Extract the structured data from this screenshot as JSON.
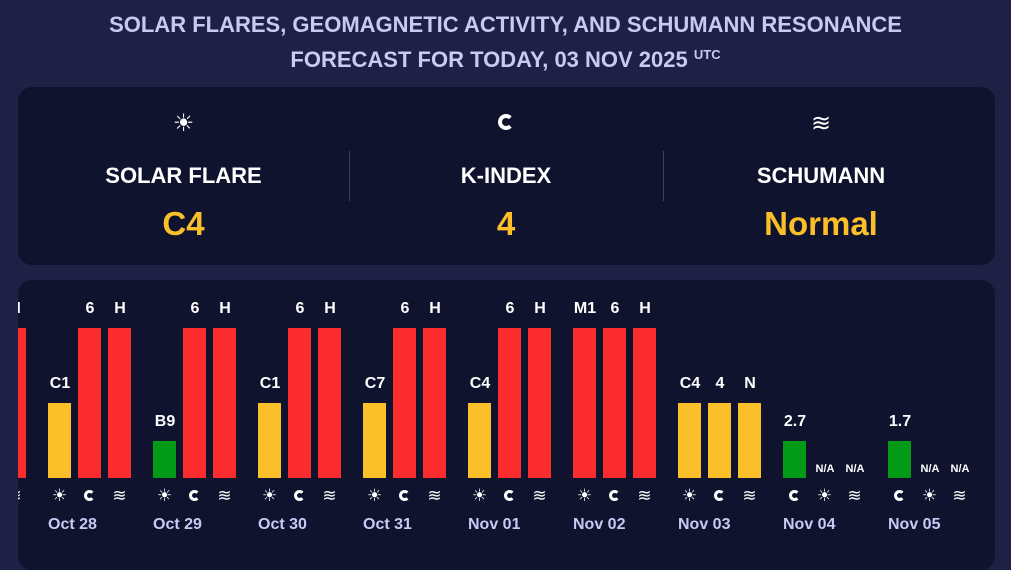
{
  "title": {
    "line1": "SOLAR FLARES, GEOMAGNETIC ACTIVITY, AND SCHUMANN RESONANCE",
    "line2": "FORECAST FOR TODAY, 03 NOV 2025",
    "sup": "UTC"
  },
  "today": [
    {
      "icon": "sun-icon",
      "label": "SOLAR FLARE",
      "value": "C4"
    },
    {
      "icon": "magnet-icon",
      "label": "K-INDEX",
      "value": "4"
    },
    {
      "icon": "waves-icon",
      "label": "SCHUMANN",
      "value": "Normal"
    }
  ],
  "colors": {
    "high": "#fb2c2e",
    "medium": "#fbbf2a",
    "low": "#029a16",
    "accent": "#fbbf2a"
  },
  "days": [
    {
      "date": "",
      "bars": [
        {
          "type": "flare",
          "label": "",
          "level": "high"
        },
        {
          "type": "k",
          "label": "",
          "level": "high"
        },
        {
          "type": "schumann",
          "label": "H",
          "level": "high"
        }
      ]
    },
    {
      "date": "Oct 28",
      "bars": [
        {
          "type": "flare",
          "label": "C1",
          "level": "medium"
        },
        {
          "type": "k",
          "label": "6",
          "level": "high"
        },
        {
          "type": "schumann",
          "label": "H",
          "level": "high"
        }
      ]
    },
    {
      "date": "Oct 29",
      "bars": [
        {
          "type": "flare",
          "label": "B9",
          "level": "low"
        },
        {
          "type": "k",
          "label": "6",
          "level": "high"
        },
        {
          "type": "schumann",
          "label": "H",
          "level": "high"
        }
      ]
    },
    {
      "date": "Oct 30",
      "bars": [
        {
          "type": "flare",
          "label": "C1",
          "level": "medium"
        },
        {
          "type": "k",
          "label": "6",
          "level": "high"
        },
        {
          "type": "schumann",
          "label": "H",
          "level": "high"
        }
      ]
    },
    {
      "date": "Oct 31",
      "bars": [
        {
          "type": "flare",
          "label": "C7",
          "level": "medium"
        },
        {
          "type": "k",
          "label": "6",
          "level": "high"
        },
        {
          "type": "schumann",
          "label": "H",
          "level": "high"
        }
      ]
    },
    {
      "date": "Nov 01",
      "bars": [
        {
          "type": "flare",
          "label": "C4",
          "level": "medium"
        },
        {
          "type": "k",
          "label": "6",
          "level": "high"
        },
        {
          "type": "schumann",
          "label": "H",
          "level": "high"
        }
      ]
    },
    {
      "date": "Nov 02",
      "bars": [
        {
          "type": "flare",
          "label": "M1",
          "level": "high"
        },
        {
          "type": "k",
          "label": "6",
          "level": "high"
        },
        {
          "type": "schumann",
          "label": "H",
          "level": "high"
        }
      ]
    },
    {
      "date": "Nov 03",
      "bars": [
        {
          "type": "flare",
          "label": "C4",
          "level": "medium"
        },
        {
          "type": "k",
          "label": "4",
          "level": "medium"
        },
        {
          "type": "schumann",
          "label": "N",
          "level": "medium"
        }
      ]
    },
    {
      "date": "Nov 04",
      "bars": [
        {
          "type": "k",
          "label": "2.7",
          "level": "low"
        },
        {
          "type": "flare",
          "label": "N/A",
          "level": "none"
        },
        {
          "type": "schumann",
          "label": "N/A",
          "level": "none"
        }
      ]
    },
    {
      "date": "Nov 05",
      "bars": [
        {
          "type": "k",
          "label": "1.7",
          "level": "low"
        },
        {
          "type": "flare",
          "label": "N/A",
          "level": "none"
        },
        {
          "type": "schumann",
          "label": "N/A",
          "level": "none"
        }
      ]
    }
  ]
}
